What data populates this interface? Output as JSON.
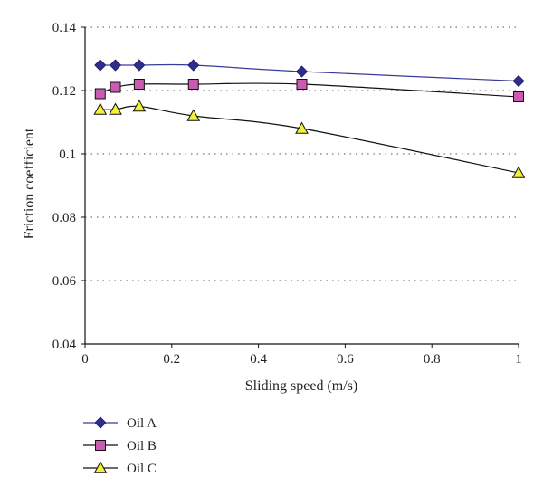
{
  "chart_data": {
    "type": "line",
    "xlabel": "Sliding speed (m/s)",
    "ylabel": "Friction coefficient",
    "xlim": [
      0,
      1
    ],
    "ylim": [
      0.04,
      0.14
    ],
    "xticks": [
      0,
      0.2,
      0.4,
      0.6,
      0.8,
      1
    ],
    "xtick_labels": [
      "0",
      "0.2",
      "0.4",
      "0.6",
      "0.8",
      "1"
    ],
    "yticks": [
      0.04,
      0.06,
      0.08,
      0.1,
      0.12,
      0.14
    ],
    "ytick_labels": [
      "0.04",
      "0.06",
      "0.08",
      "0.1",
      "0.12",
      "0.14"
    ],
    "grid": "horizontal dotted",
    "legend_position": "bottom-left",
    "series": [
      {
        "name": "Oil A",
        "marker": "diamond",
        "color": "#2e2e8c",
        "line_color": "#3a3a9a",
        "x": [
          0.035,
          0.07,
          0.125,
          0.25,
          0.5,
          1.0
        ],
        "values": [
          0.128,
          0.128,
          0.128,
          0.128,
          0.126,
          0.123
        ]
      },
      {
        "name": "Oil B",
        "marker": "square",
        "color": "#c95bb0",
        "line_color": "#111111",
        "x": [
          0.035,
          0.07,
          0.125,
          0.25,
          0.5,
          1.0
        ],
        "values": [
          0.119,
          0.121,
          0.122,
          0.122,
          0.122,
          0.118
        ]
      },
      {
        "name": "Oil C",
        "marker": "triangle",
        "color": "#f5f03a",
        "line_color": "#111111",
        "x": [
          0.035,
          0.07,
          0.125,
          0.25,
          0.5,
          1.0
        ],
        "values": [
          0.114,
          0.114,
          0.115,
          0.112,
          0.108,
          0.094
        ]
      }
    ]
  }
}
